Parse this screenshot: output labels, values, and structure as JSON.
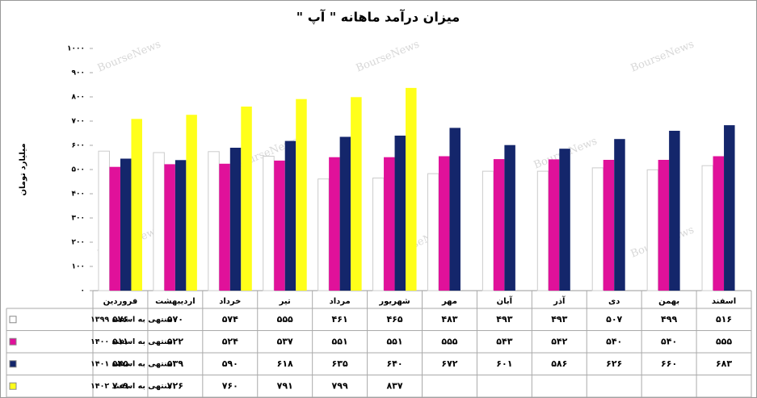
{
  "chart_data": {
    "type": "bar",
    "title": "میزان درآمد ماهانه \" آپ \"",
    "y_label": "میلیارد تومان",
    "watermark": "BourseNews",
    "categories": [
      "فروردین",
      "اردیبهشت",
      "خرداد",
      "تیر",
      "مرداد",
      "شهریور",
      "مهر",
      "آبان",
      "آذر",
      "دی",
      "بهمن",
      "اسفند"
    ],
    "ylim": [
      0,
      1000
    ],
    "yticks": [
      {
        "value": 0,
        "label": "۰"
      },
      {
        "value": 100,
        "label": "۱۰۰"
      },
      {
        "value": 200,
        "label": "۲۰۰"
      },
      {
        "value": 300,
        "label": "۳۰۰"
      },
      {
        "value": 400,
        "label": "۴۰۰"
      },
      {
        "value": 500,
        "label": "۵۰۰"
      },
      {
        "value": 600,
        "label": "۶۰۰"
      },
      {
        "value": 700,
        "label": "۷۰۰"
      },
      {
        "value": 800,
        "label": "۸۰۰"
      },
      {
        "value": 900,
        "label": "۹۰۰"
      },
      {
        "value": 1000,
        "label": "۱۰۰۰"
      }
    ],
    "series": [
      {
        "name": "منتهی به اسفند ۱۳۹۹",
        "color": "#ffffff",
        "values": [
          576,
          570,
          574,
          555,
          461,
          465,
          483,
          493,
          493,
          507,
          499,
          516
        ],
        "value_labels": [
          "۵۷۶",
          "۵۷۰",
          "۵۷۴",
          "۵۵۵",
          "۴۶۱",
          "۴۶۵",
          "۴۸۳",
          "۴۹۳",
          "۴۹۳",
          "۵۰۷",
          "۴۹۹",
          "۵۱۶"
        ]
      },
      {
        "name": "منتهی به اسفند ۱۴۰۰",
        "color": "#e0119a",
        "values": [
          511,
          522,
          524,
          537,
          551,
          551,
          555,
          543,
          542,
          540,
          540,
          555
        ],
        "value_labels": [
          "۵۱۱",
          "۵۲۲",
          "۵۲۴",
          "۵۳۷",
          "۵۵۱",
          "۵۵۱",
          "۵۵۵",
          "۵۴۳",
          "۵۴۲",
          "۵۴۰",
          "۵۴۰",
          "۵۵۵"
        ]
      },
      {
        "name": "منتهی به اسفند ۱۴۰۱",
        "color": "#14266b",
        "values": [
          545,
          539,
          590,
          618,
          635,
          640,
          672,
          601,
          586,
          626,
          660,
          683
        ],
        "value_labels": [
          "۵۴۵",
          "۵۳۹",
          "۵۹۰",
          "۶۱۸",
          "۶۳۵",
          "۶۴۰",
          "۶۷۲",
          "۶۰۱",
          "۵۸۶",
          "۶۲۶",
          "۶۶۰",
          "۶۸۳"
        ]
      },
      {
        "name": "منتهی به اسفند ۱۴۰۲",
        "color": "#ffff1a",
        "values": [
          709,
          726,
          760,
          791,
          799,
          837,
          null,
          null,
          null,
          null,
          null,
          null
        ],
        "value_labels": [
          "۷۰۹",
          "۷۲۶",
          "۷۶۰",
          "۷۹۱",
          "۷۹۹",
          "۸۳۷",
          null,
          null,
          null,
          null,
          null,
          null
        ]
      }
    ]
  }
}
